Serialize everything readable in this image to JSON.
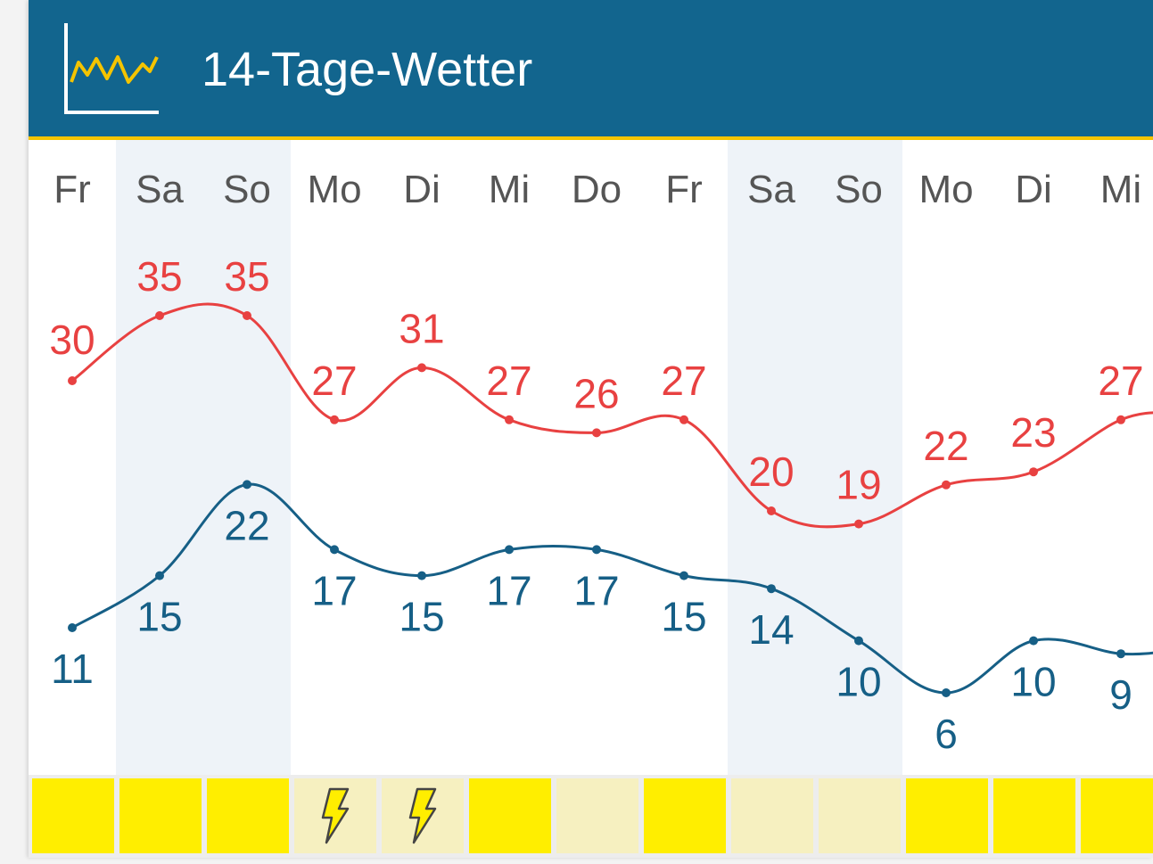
{
  "header": {
    "title": "14-Tage-Wetter",
    "icon": "trend-chart-icon",
    "accent_color": "#f5c400"
  },
  "chart_data": {
    "type": "line",
    "categories": [
      "Fr",
      "Sa",
      "So",
      "Mo",
      "Di",
      "Mi",
      "Do",
      "Fr",
      "Sa",
      "So",
      "Mo",
      "Di",
      "Mi"
    ],
    "weekend_columns": [
      1,
      2,
      8,
      9
    ],
    "series": [
      {
        "values": [
          30,
          35,
          35,
          27,
          31,
          27,
          26,
          27,
          20,
          19,
          22,
          23,
          27
        ],
        "color": "#e84141"
      },
      {
        "values": [
          11,
          15,
          22,
          17,
          15,
          17,
          17,
          15,
          14,
          10,
          6,
          10,
          9
        ],
        "color": "#165f86"
      }
    ]
  },
  "weather_strip": [
    {
      "condition": "sunny",
      "color": "#ffee00"
    },
    {
      "condition": "sunny",
      "color": "#ffee00"
    },
    {
      "condition": "sunny",
      "color": "#ffee00"
    },
    {
      "condition": "thunderstorm",
      "color": "#f6f0c0",
      "icon": "lightning-icon"
    },
    {
      "condition": "thunderstorm",
      "color": "#f6f0c0",
      "icon": "lightning-icon"
    },
    {
      "condition": "sunny",
      "color": "#ffee00"
    },
    {
      "condition": "cloudy",
      "color": "#f6f0c0"
    },
    {
      "condition": "sunny",
      "color": "#ffee00"
    },
    {
      "condition": "cloudy",
      "color": "#f6f0c0"
    },
    {
      "condition": "cloudy",
      "color": "#f6f0c0"
    },
    {
      "condition": "sunny",
      "color": "#ffee00"
    },
    {
      "condition": "sunny",
      "color": "#ffee00"
    },
    {
      "condition": "sunny",
      "color": "#ffee00"
    }
  ]
}
